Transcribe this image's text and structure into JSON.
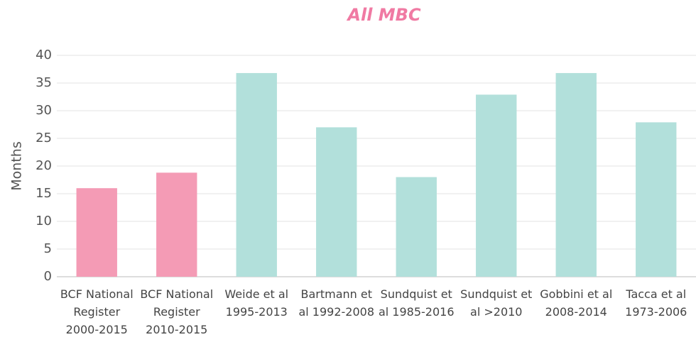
{
  "chart_data": {
    "type": "bar",
    "title": "All MBC",
    "y_label": "Months",
    "categories": [
      "BCF National Register 2000-2015",
      "BCF National Register 2010-2015",
      "Weide et al 1995-2013",
      "Bartmann et al 1992-2008",
      "Sundquist et al 1985-2016",
      "Sundquist et al >2010",
      "Gobbini et al 2008-2014",
      "Tacca et al 1973-2006"
    ],
    "values": [
      16,
      18.8,
      36.8,
      27,
      18,
      32.9,
      36.8,
      27.9
    ],
    "colors": [
      "#f49bb5",
      "#f49bb5",
      "#b2e0db",
      "#b2e0db",
      "#b2e0db",
      "#b2e0db",
      "#b2e0db",
      "#b2e0db"
    ],
    "title_color": "#f07aa3",
    "ylim": [
      0,
      40
    ],
    "yticks": [
      0,
      5,
      10,
      15,
      20,
      25,
      30,
      35,
      40
    ],
    "grid": true
  }
}
